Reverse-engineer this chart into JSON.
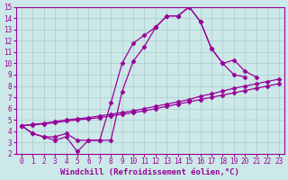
{
  "xlabel": "Windchill (Refroidissement éolien,°C)",
  "xlim": [
    -0.5,
    23.5
  ],
  "ylim": [
    2,
    15
  ],
  "xticks": [
    0,
    1,
    2,
    3,
    4,
    5,
    6,
    7,
    8,
    9,
    10,
    11,
    12,
    13,
    14,
    15,
    16,
    17,
    18,
    19,
    20,
    21,
    22,
    23
  ],
  "yticks": [
    2,
    3,
    4,
    5,
    6,
    7,
    8,
    9,
    10,
    11,
    12,
    13,
    14,
    15
  ],
  "bg_color": "#cce8e8",
  "grid_color": "#aacccc",
  "line_color": "#990099",
  "series": [
    {
      "x": [
        0,
        1,
        2,
        3,
        4,
        5,
        6,
        7,
        8,
        9,
        10,
        11,
        12,
        13,
        14,
        15,
        16,
        17,
        18,
        19,
        20,
        21
      ],
      "y": [
        4.5,
        3.8,
        3.5,
        3.2,
        3.5,
        2.2,
        3.2,
        3.2,
        3.2,
        7.5,
        10.2,
        11.5,
        13.2,
        14.2,
        14.2,
        15.0,
        13.7,
        11.3,
        10.0,
        10.3,
        9.3,
        8.8
      ]
    },
    {
      "x": [
        0,
        1,
        2,
        3,
        4,
        5,
        6,
        7,
        8,
        9,
        10,
        11,
        12,
        13,
        14,
        15,
        16,
        17,
        18,
        19,
        20
      ],
      "y": [
        4.5,
        3.8,
        3.5,
        3.5,
        3.8,
        3.2,
        3.2,
        3.2,
        6.5,
        10.0,
        11.8,
        12.5,
        13.2,
        14.2,
        14.2,
        15.0,
        13.7,
        11.3,
        10.0,
        9.0,
        8.8
      ]
    },
    {
      "x": [
        0,
        1,
        2,
        3,
        4,
        5,
        6,
        7,
        8,
        9,
        10,
        11,
        12,
        13,
        14,
        15,
        16,
        17,
        18,
        19,
        20,
        21,
        22,
        23
      ],
      "y": [
        4.5,
        4.6,
        4.7,
        4.85,
        5.0,
        5.1,
        5.2,
        5.35,
        5.5,
        5.65,
        5.8,
        6.0,
        6.2,
        6.4,
        6.6,
        6.8,
        7.1,
        7.3,
        7.55,
        7.8,
        8.0,
        8.2,
        8.4,
        8.6
      ]
    },
    {
      "x": [
        0,
        1,
        2,
        3,
        4,
        5,
        6,
        7,
        8,
        9,
        10,
        11,
        12,
        13,
        14,
        15,
        16,
        17,
        18,
        19,
        20,
        21,
        22,
        23
      ],
      "y": [
        4.5,
        4.55,
        4.65,
        4.75,
        4.9,
        5.0,
        5.1,
        5.2,
        5.35,
        5.5,
        5.65,
        5.8,
        6.0,
        6.2,
        6.4,
        6.6,
        6.8,
        7.0,
        7.2,
        7.4,
        7.6,
        7.8,
        8.0,
        8.2
      ]
    }
  ],
  "marker": "D",
  "markersize": 2.5,
  "linewidth": 0.9,
  "xlabel_fontsize": 6.5,
  "tick_fontsize": 5.5
}
